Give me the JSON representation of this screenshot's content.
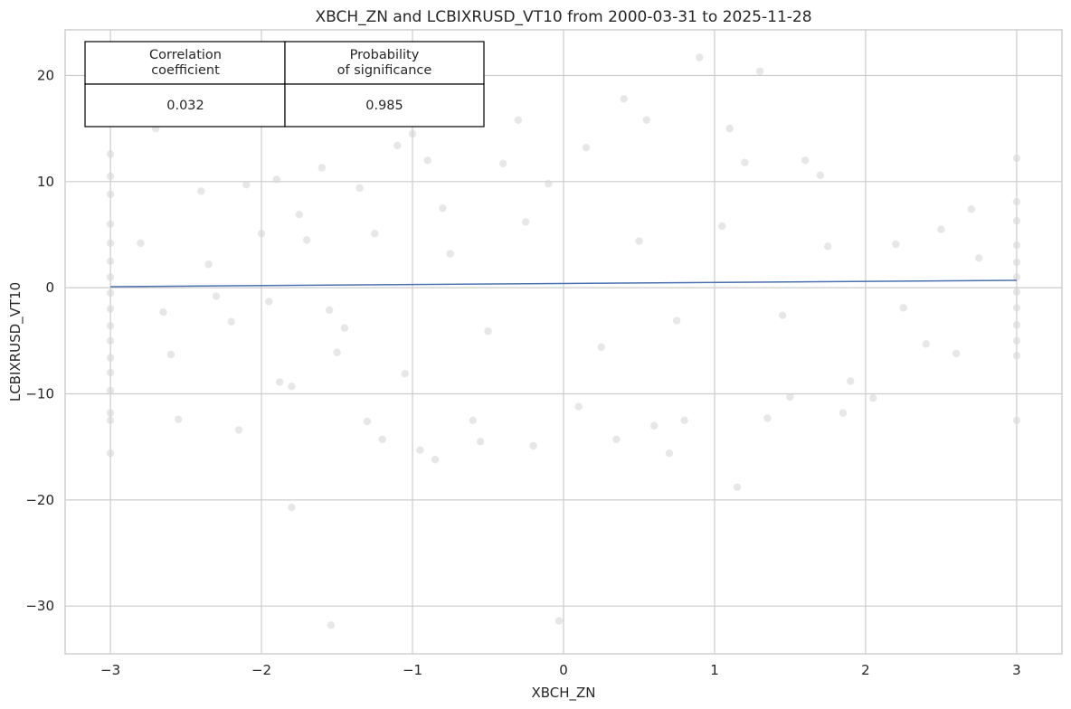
{
  "chart_data": {
    "type": "scatter",
    "title": "XBCH_ZN and LCBIXRUSD_VT10 from 2000-03-31 to 2025-11-28",
    "xlabel": "XBCH_ZN",
    "ylabel": "LCBIXRUSD_VT10",
    "xlim": [
      -3.3,
      3.3
    ],
    "ylim": [
      -34.5,
      24.3
    ],
    "xticks": [
      -3,
      -2,
      -1,
      0,
      1,
      2,
      3
    ],
    "xtick_labels": [
      "−3",
      "−2",
      "−1",
      "0",
      "1",
      "2",
      "3"
    ],
    "yticks": [
      -30,
      -20,
      -10,
      0,
      10,
      20
    ],
    "ytick_labels": [
      "−30",
      "−20",
      "−10",
      "0",
      "10",
      "20"
    ],
    "grid": true,
    "point_color": "#d3d3d3",
    "fit_color": "#4c72b0",
    "regression_line": {
      "x": [
        -3,
        3
      ],
      "y": [
        0.1,
        0.7
      ]
    },
    "points": [
      [
        -3.0,
        12.6
      ],
      [
        -3.0,
        10.5
      ],
      [
        -3.0,
        8.8
      ],
      [
        -3.0,
        6.0
      ],
      [
        -3.0,
        4.2
      ],
      [
        -3.0,
        2.5
      ],
      [
        -3.0,
        1.0
      ],
      [
        -3.0,
        -0.5
      ],
      [
        -3.0,
        -2.0
      ],
      [
        -3.0,
        -3.6
      ],
      [
        -3.0,
        -5.0
      ],
      [
        -3.0,
        -6.6
      ],
      [
        -3.0,
        -8.0
      ],
      [
        -3.0,
        -9.7
      ],
      [
        -3.0,
        -11.8
      ],
      [
        -3.0,
        -12.5
      ],
      [
        -3.0,
        -15.6
      ],
      [
        -2.8,
        4.2
      ],
      [
        -2.7,
        15.0
      ],
      [
        -2.65,
        -2.3
      ],
      [
        -2.6,
        -6.3
      ],
      [
        -2.55,
        -12.4
      ],
      [
        -2.4,
        9.1
      ],
      [
        -2.35,
        2.2
      ],
      [
        -2.3,
        -0.8
      ],
      [
        -2.2,
        -3.2
      ],
      [
        -2.15,
        -13.4
      ],
      [
        -2.1,
        9.7
      ],
      [
        -2.0,
        5.1
      ],
      [
        -1.95,
        -1.3
      ],
      [
        -1.9,
        10.2
      ],
      [
        -1.88,
        -8.9
      ],
      [
        -1.8,
        -9.3
      ],
      [
        -1.8,
        -20.7
      ],
      [
        -1.7,
        4.5
      ],
      [
        -1.6,
        11.3
      ],
      [
        -1.55,
        -2.1
      ],
      [
        -1.5,
        -6.1
      ],
      [
        -1.35,
        9.4
      ],
      [
        -1.3,
        -12.6
      ],
      [
        -1.2,
        -14.3
      ],
      [
        -1.1,
        13.4
      ],
      [
        -1.05,
        -8.1
      ],
      [
        -1.0,
        14.5
      ],
      [
        -0.95,
        -15.3
      ],
      [
        -0.9,
        12.0
      ],
      [
        -0.85,
        -16.2
      ],
      [
        -0.8,
        7.5
      ],
      [
        -0.6,
        -12.5
      ],
      [
        -0.55,
        -14.5
      ],
      [
        -0.4,
        11.7
      ],
      [
        -0.3,
        15.8
      ],
      [
        -0.2,
        -14.9
      ],
      [
        -0.1,
        9.8
      ],
      [
        0.1,
        -11.2
      ],
      [
        0.15,
        13.2
      ],
      [
        0.35,
        -14.3
      ],
      [
        0.4,
        17.8
      ],
      [
        0.55,
        15.8
      ],
      [
        0.6,
        -13.0
      ],
      [
        0.7,
        -15.6
      ],
      [
        0.8,
        -12.5
      ],
      [
        0.9,
        21.7
      ],
      [
        1.1,
        15.0
      ],
      [
        1.15,
        -18.8
      ],
      [
        1.2,
        11.8
      ],
      [
        1.3,
        20.4
      ],
      [
        1.35,
        -12.3
      ],
      [
        1.5,
        -10.3
      ],
      [
        1.6,
        12.0
      ],
      [
        1.7,
        10.6
      ],
      [
        1.85,
        -11.8
      ],
      [
        1.9,
        -8.8
      ],
      [
        2.05,
        -10.4
      ],
      [
        2.2,
        4.1
      ],
      [
        2.4,
        -5.3
      ],
      [
        2.5,
        5.5
      ],
      [
        2.6,
        -6.2
      ],
      [
        2.7,
        7.4
      ],
      [
        -1.54,
        -31.8
      ],
      [
        -0.03,
        -31.4
      ],
      [
        -1.75,
        6.9
      ],
      [
        -1.45,
        -3.8
      ],
      [
        -1.25,
        5.1
      ],
      [
        -0.75,
        3.2
      ],
      [
        -0.5,
        -4.1
      ],
      [
        -0.25,
        6.2
      ],
      [
        0.25,
        -5.6
      ],
      [
        0.5,
        4.4
      ],
      [
        0.75,
        -3.1
      ],
      [
        1.05,
        5.8
      ],
      [
        1.45,
        -2.6
      ],
      [
        1.75,
        3.9
      ],
      [
        2.25,
        -1.9
      ],
      [
        2.75,
        2.8
      ],
      [
        3.0,
        12.2
      ],
      [
        3.0,
        8.1
      ],
      [
        3.0,
        6.3
      ],
      [
        3.0,
        4.0
      ],
      [
        3.0,
        2.4
      ],
      [
        3.0,
        1.0
      ],
      [
        3.0,
        -0.4
      ],
      [
        3.0,
        -1.9
      ],
      [
        3.0,
        -3.5
      ],
      [
        3.0,
        -5.0
      ],
      [
        3.0,
        -6.4
      ],
      [
        3.0,
        -12.5
      ]
    ]
  },
  "stats_table": {
    "headers": [
      "Correlation\ncoefficient",
      "Probability\nof significance"
    ],
    "values": [
      "0.032",
      "0.985"
    ]
  }
}
